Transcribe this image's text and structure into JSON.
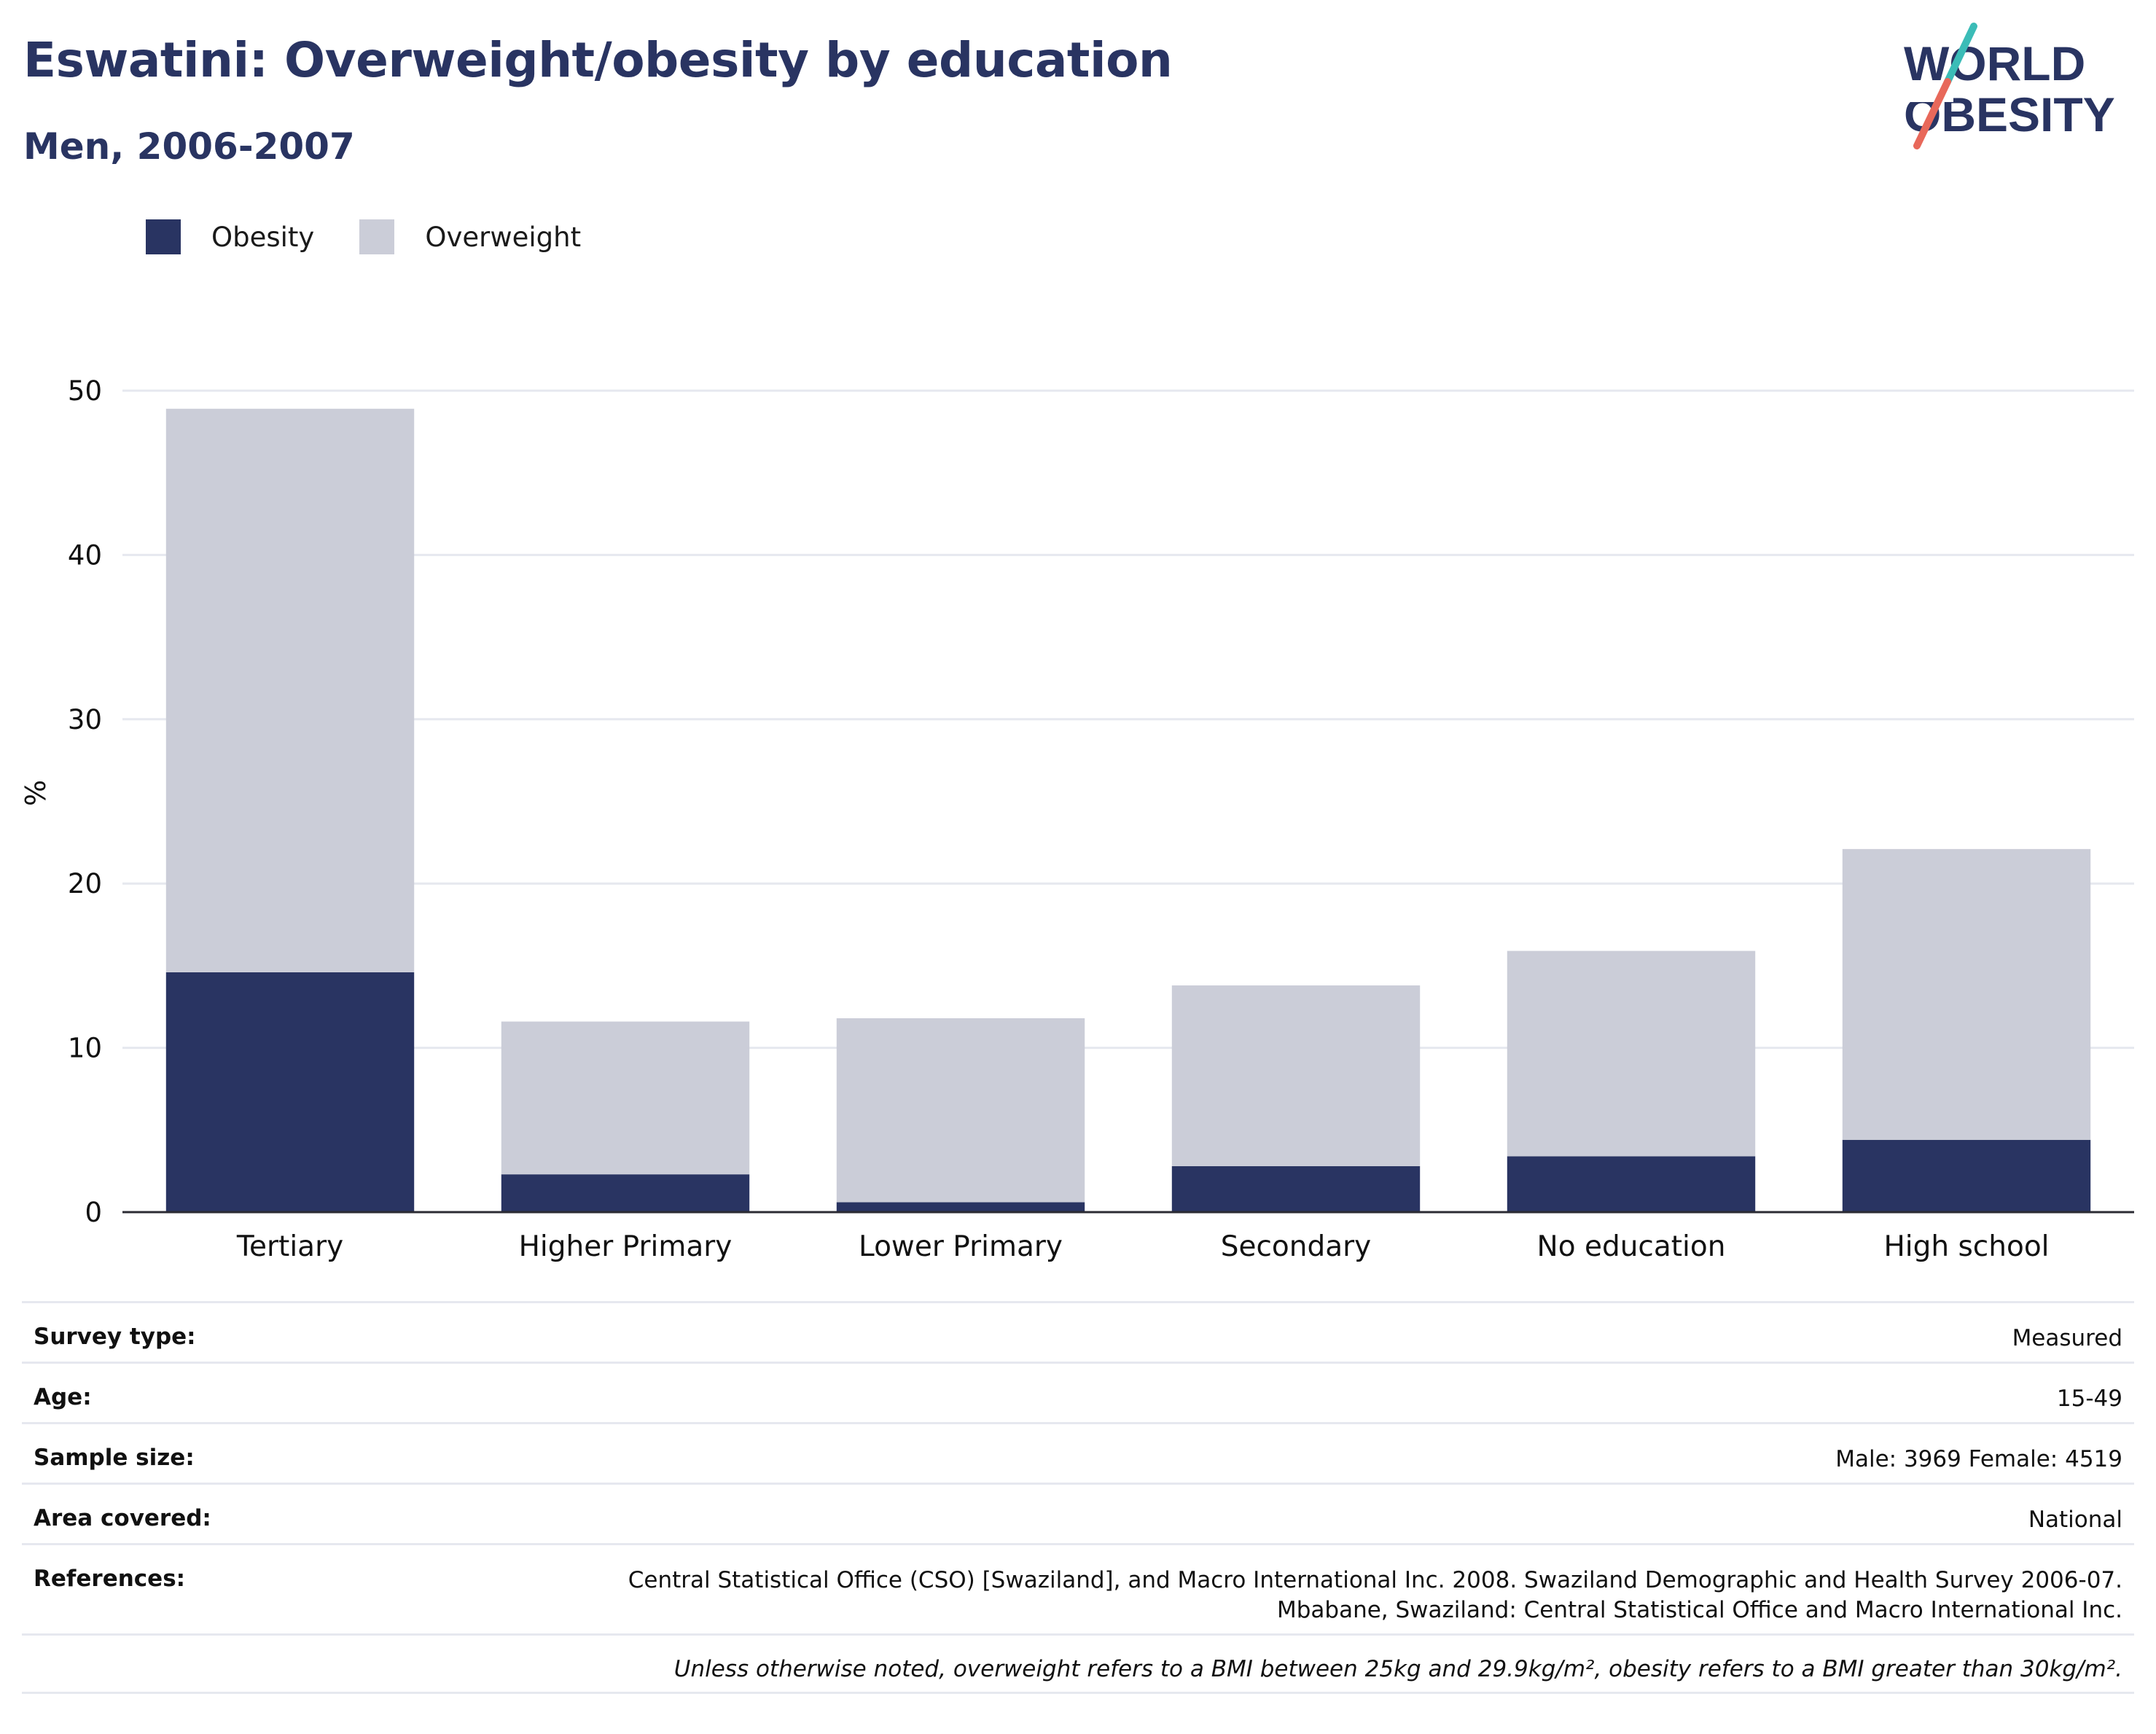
{
  "header": {
    "title": "Eswatini: Overweight/obesity by education",
    "subtitle": "Men, 2006-2007"
  },
  "logo": {
    "line1": "WORLD",
    "line2": "OBESITY",
    "colors": {
      "text": "#293462",
      "slash_top": "#3bbcb7",
      "slash_bottom": "#e8685a"
    }
  },
  "legend": [
    {
      "label": "Obesity",
      "color": "#293462"
    },
    {
      "label": "Overweight",
      "color": "#cbcdd8"
    }
  ],
  "chart_data": {
    "type": "bar",
    "stacked": true,
    "categories": [
      "Tertiary",
      "Higher Primary",
      "Lower Primary",
      "Secondary",
      "No education",
      "High school"
    ],
    "series": [
      {
        "name": "Obesity",
        "values": [
          14.6,
          2.3,
          0.6,
          2.8,
          3.4,
          4.4
        ],
        "color": "#293462"
      },
      {
        "name": "Overweight",
        "values": [
          34.3,
          9.3,
          11.2,
          11.0,
          12.5,
          17.7
        ],
        "color": "#cbcdd8"
      }
    ],
    "ylabel": "%",
    "xlabel": "",
    "ylim": [
      0,
      50
    ],
    "yticks": [
      "0",
      "10",
      "20",
      "30",
      "40",
      "50"
    ],
    "grid": true,
    "legend_position": "top-left"
  },
  "metadata": {
    "survey_type": {
      "label": "Survey type:",
      "value": "Measured"
    },
    "age": {
      "label": "Age:",
      "value": "15-49"
    },
    "sample_size": {
      "label": "Sample size:",
      "value": "Male: 3969 Female: 4519"
    },
    "area_covered": {
      "label": "Area covered:",
      "value": "National"
    },
    "references": {
      "label": "References:",
      "value_line1": "Central Statistical Office (CSO) [Swaziland], and Macro International Inc. 2008. Swaziland Demographic and Health Survey 2006-07.",
      "value_line2": "Mbabane, Swaziland: Central Statistical Office and Macro International Inc."
    },
    "note": "Unless otherwise noted, overweight refers to a BMI between 25kg and 29.9kg/m², obesity refers to a BMI greater than 30kg/m²."
  }
}
